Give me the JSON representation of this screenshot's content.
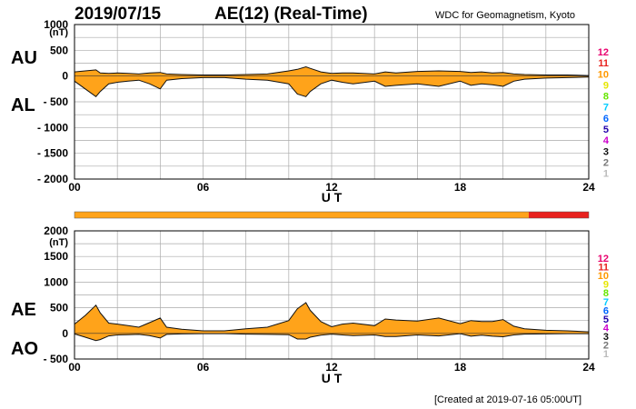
{
  "header": {
    "date": "2019/07/15",
    "title": "AE(12) (Real-Time)",
    "source": "WDC for Geomagnetism, Kyoto"
  },
  "footer": {
    "created": "[Created at 2019-07-16 05:00UT]"
  },
  "colors": {
    "fill": "#FFA31A",
    "grid": "#AAAAAA",
    "bar_main": "#FFA31A",
    "bar_alt": "#E8221E"
  },
  "station_legend": [
    {
      "label": "12",
      "color": "#E8006E"
    },
    {
      "label": "11",
      "color": "#E8221E"
    },
    {
      "label": "10",
      "color": "#FF9900"
    },
    {
      "label": "9",
      "color": "#E6E600"
    },
    {
      "label": "8",
      "color": "#66E600"
    },
    {
      "label": "7",
      "color": "#00CCFF"
    },
    {
      "label": "6",
      "color": "#0066FF"
    },
    {
      "label": "5",
      "color": "#2200AA"
    },
    {
      "label": "4",
      "color": "#CC00CC"
    },
    {
      "label": "3",
      "color": "#111111"
    },
    {
      "label": "2",
      "color": "#777777"
    },
    {
      "label": "1",
      "color": "#BBBBBB"
    }
  ],
  "station_bar": {
    "segments": [
      {
        "start": 0,
        "end": 21.2,
        "count": 10
      },
      {
        "start": 21.2,
        "end": 24,
        "count": 11
      }
    ]
  },
  "chart_data": [
    {
      "type": "area",
      "name": "AU/AL",
      "upper_label": "AU",
      "lower_label": "AL",
      "yunit": "(nT)",
      "xlabel": "U T",
      "xlim": [
        0,
        24
      ],
      "ylim": [
        -2000,
        1000
      ],
      "xticks": [
        "00",
        "06",
        "12",
        "18",
        "24"
      ],
      "yticks": [
        "1000",
        "500",
        "0",
        "- 500",
        "- 1000",
        "- 1500",
        "- 2000"
      ],
      "ytick_values": [
        1000,
        500,
        0,
        -500,
        -1000,
        -1500,
        -2000
      ],
      "x": [
        0,
        0.5,
        1,
        1.2,
        1.6,
        2,
        2.5,
        3,
        3.5,
        4,
        4.3,
        5,
        6,
        7,
        8,
        9,
        10,
        10.4,
        10.8,
        11,
        11.5,
        12,
        12.5,
        13,
        14,
        14.5,
        15,
        16,
        17,
        18,
        18.5,
        19,
        19.5,
        20,
        20.5,
        21,
        22,
        23,
        24
      ],
      "series": [
        {
          "name": "AU",
          "values": [
            80,
            100,
            120,
            60,
            50,
            60,
            50,
            40,
            60,
            70,
            40,
            30,
            20,
            20,
            30,
            40,
            100,
            130,
            180,
            150,
            80,
            50,
            60,
            60,
            40,
            80,
            60,
            90,
            100,
            90,
            70,
            80,
            60,
            70,
            40,
            30,
            20,
            20,
            10
          ]
        },
        {
          "name": "AL",
          "values": [
            -100,
            -250,
            -400,
            -300,
            -150,
            -120,
            -100,
            -80,
            -150,
            -250,
            -80,
            -50,
            -30,
            -30,
            -60,
            -80,
            -150,
            -350,
            -400,
            -300,
            -150,
            -80,
            -120,
            -150,
            -100,
            -200,
            -180,
            -150,
            -200,
            -100,
            -180,
            -150,
            -170,
            -200,
            -100,
            -60,
            -40,
            -30,
            -20
          ]
        }
      ]
    },
    {
      "type": "area",
      "name": "AE/AO",
      "upper_label": "AE",
      "lower_label": "AO",
      "yunit": "(nT)",
      "xlabel": "U T",
      "xlim": [
        0,
        24
      ],
      "ylim": [
        -500,
        2000
      ],
      "xticks": [
        "00",
        "06",
        "12",
        "18",
        "24"
      ],
      "yticks": [
        "2000",
        "1500",
        "1000",
        "500",
        "0",
        "- 500"
      ],
      "ytick_values": [
        2000,
        1500,
        1000,
        500,
        0,
        -500
      ],
      "x": [
        0,
        0.5,
        1,
        1.2,
        1.6,
        2,
        2.5,
        3,
        3.5,
        4,
        4.3,
        5,
        6,
        7,
        8,
        9,
        10,
        10.4,
        10.8,
        11,
        11.5,
        12,
        12.5,
        13,
        14,
        14.5,
        15,
        16,
        17,
        18,
        18.5,
        19,
        19.5,
        20,
        20.5,
        21,
        22,
        23,
        24
      ],
      "series": [
        {
          "name": "AE",
          "values": [
            180,
            350,
            550,
            400,
            200,
            180,
            150,
            120,
            210,
            300,
            120,
            80,
            50,
            50,
            90,
            120,
            250,
            480,
            600,
            450,
            230,
            130,
            180,
            200,
            150,
            280,
            260,
            240,
            300,
            190,
            250,
            230,
            230,
            270,
            140,
            90,
            60,
            50,
            30
          ]
        },
        {
          "name": "AO",
          "values": [
            -10,
            -75,
            -140,
            -120,
            -50,
            -30,
            -25,
            -20,
            -45,
            -90,
            -20,
            -10,
            -5,
            -5,
            -15,
            -20,
            -25,
            -110,
            -110,
            -75,
            -35,
            -15,
            -30,
            -45,
            -30,
            -60,
            -60,
            -30,
            -50,
            -5,
            -55,
            -35,
            -55,
            -65,
            -30,
            -15,
            -10,
            -5,
            -5
          ]
        }
      ]
    }
  ]
}
